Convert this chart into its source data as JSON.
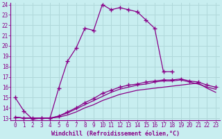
{
  "xlabel": "Windchill (Refroidissement éolien,°C)",
  "background_color": "#c8eef0",
  "grid_color": "#b0d8da",
  "line_color": "#880088",
  "xlim": [
    -0.5,
    23.5
  ],
  "ylim": [
    12.8,
    24.2
  ],
  "yticks": [
    13,
    14,
    15,
    16,
    17,
    18,
    19,
    20,
    21,
    22,
    23,
    24
  ],
  "xticks": [
    0,
    1,
    2,
    3,
    4,
    5,
    6,
    7,
    8,
    9,
    10,
    11,
    12,
    13,
    14,
    15,
    16,
    17,
    18,
    19,
    20,
    21,
    22,
    23
  ],
  "curves": [
    {
      "x": [
        0,
        1,
        2,
        3,
        4,
        5,
        6,
        7,
        8,
        9,
        10,
        11,
        12,
        13,
        14,
        15,
        16,
        17,
        18
      ],
      "y": [
        15.0,
        13.7,
        12.9,
        13.0,
        13.0,
        15.9,
        18.5,
        19.8,
        21.7,
        21.5,
        24.0,
        23.5,
        23.7,
        23.5,
        23.3,
        22.5,
        21.7,
        17.5,
        17.5
      ],
      "marker": "+"
    },
    {
      "x": [
        0,
        1,
        2,
        3,
        4,
        5,
        6,
        7,
        8,
        9,
        10,
        11,
        12,
        13,
        14,
        15,
        16,
        17,
        18,
        19,
        20,
        21,
        22,
        23
      ],
      "y": [
        13.1,
        13.0,
        13.0,
        13.0,
        13.0,
        13.1,
        13.3,
        13.6,
        14.0,
        14.3,
        14.7,
        15.0,
        15.3,
        15.5,
        15.7,
        15.8,
        15.9,
        16.0,
        16.1,
        16.2,
        16.3,
        16.4,
        15.9,
        15.5
      ],
      "marker": null
    },
    {
      "x": [
        0,
        1,
        2,
        3,
        4,
        5,
        6,
        7,
        8,
        9,
        10,
        11,
        12,
        13,
        14,
        15,
        16,
        17,
        18,
        19,
        20,
        21,
        22,
        23
      ],
      "y": [
        13.1,
        13.0,
        13.0,
        13.0,
        13.0,
        13.2,
        13.5,
        13.9,
        14.3,
        14.7,
        15.1,
        15.5,
        15.8,
        16.0,
        16.2,
        16.3,
        16.5,
        16.6,
        16.6,
        16.7,
        16.5,
        16.3,
        16.0,
        15.8
      ],
      "marker": null
    },
    {
      "x": [
        0,
        1,
        2,
        3,
        4,
        5,
        6,
        7,
        8,
        9,
        10,
        11,
        12,
        13,
        14,
        15,
        16,
        17,
        18,
        19,
        20,
        21,
        22,
        23
      ],
      "y": [
        13.1,
        13.0,
        13.0,
        13.0,
        13.0,
        13.2,
        13.6,
        14.0,
        14.5,
        14.9,
        15.4,
        15.7,
        16.0,
        16.2,
        16.3,
        16.5,
        16.6,
        16.7,
        16.7,
        16.8,
        16.6,
        16.5,
        16.2,
        16.0
      ],
      "marker": "+"
    }
  ],
  "font_family": "monospace",
  "tick_fontsize": 5.5,
  "xlabel_fontsize": 6.0
}
